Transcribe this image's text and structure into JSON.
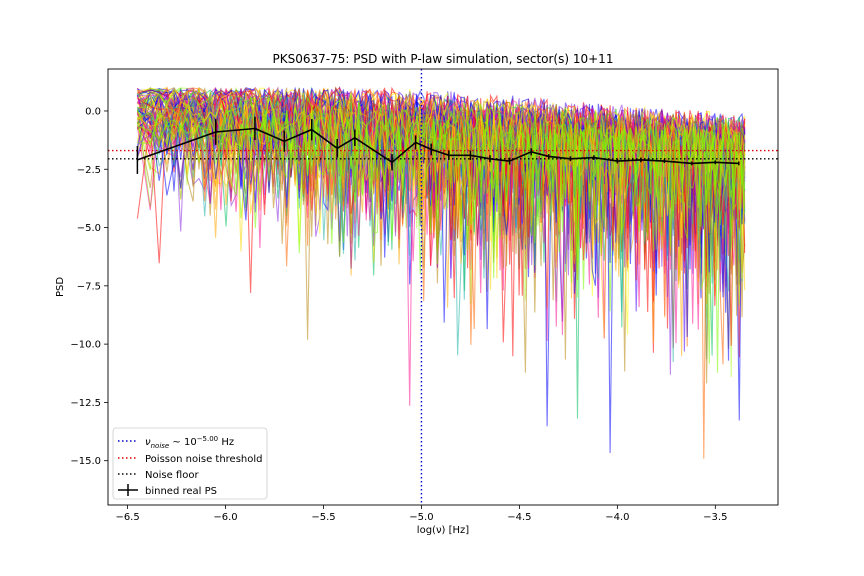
{
  "chart_data": {
    "type": "line",
    "title": "PKS0637-75: PSD with P-law simulation, sector(s) 10+11",
    "xlabel": "log(ν) [Hz]",
    "ylabel": "PSD",
    "xlim": [
      -6.6,
      -3.18
    ],
    "ylim": [
      -16.9,
      1.8
    ],
    "xticks": [
      -6.5,
      -6.0,
      -5.5,
      -5.0,
      -4.5,
      -4.0,
      -3.5
    ],
    "xtick_labels": [
      "−6.5",
      "−6.0",
      "−5.5",
      "−5.0",
      "−4.5",
      "−4.0",
      "−3.5"
    ],
    "yticks": [
      0.0,
      -2.5,
      -5.0,
      -7.5,
      -10.0,
      -12.5,
      -15.0
    ],
    "ytick_labels": [
      "0.0",
      "−2.5",
      "−5.0",
      "−7.5",
      "−10.0",
      "−12.5",
      "−15.0"
    ],
    "grid": false,
    "legend_position": "lower-left",
    "simulation": {
      "x_range": [
        -6.45,
        -3.35
      ],
      "n_traces": 90,
      "colors": [
        "#0000ff",
        "#4a00ff",
        "#8a2be2",
        "#ff0000",
        "#ff6600",
        "#ffa500",
        "#ffd700",
        "#ffff00",
        "#adff2f",
        "#7cfc00",
        "#00c060",
        "#20b2aa",
        "#ff1493",
        "#b8860b"
      ],
      "final_color": "#7cfc00",
      "opacity": 0.55
    },
    "binned_real_ps": {
      "name": "binned real PS",
      "color": "#000000",
      "points": [
        {
          "x": -6.45,
          "y": -2.1,
          "err": 0.6
        },
        {
          "x": -6.05,
          "y": -0.9,
          "err": 0.55
        },
        {
          "x": -5.85,
          "y": -0.75,
          "err": 0.5
        },
        {
          "x": -5.7,
          "y": -1.3,
          "err": 0.45
        },
        {
          "x": -5.56,
          "y": -0.8,
          "err": 0.45
        },
        {
          "x": -5.43,
          "y": -1.6,
          "err": 0.4
        },
        {
          "x": -5.34,
          "y": -1.15,
          "err": 0.35
        },
        {
          "x": -5.15,
          "y": -2.2,
          "err": 0.35
        },
        {
          "x": -5.03,
          "y": -1.35,
          "err": 0.3
        },
        {
          "x": -4.95,
          "y": -1.65,
          "err": 0.25
        },
        {
          "x": -4.86,
          "y": -1.9,
          "err": 0.2
        },
        {
          "x": -4.75,
          "y": -1.9,
          "err": 0.2
        },
        {
          "x": -4.65,
          "y": -2.05,
          "err": 0.15
        },
        {
          "x": -4.55,
          "y": -2.15,
          "err": 0.15
        },
        {
          "x": -4.44,
          "y": -1.75,
          "err": 0.15
        },
        {
          "x": -4.35,
          "y": -1.95,
          "err": 0.1
        },
        {
          "x": -4.24,
          "y": -2.05,
          "err": 0.1
        },
        {
          "x": -4.12,
          "y": -2.0,
          "err": 0.1
        },
        {
          "x": -4.0,
          "y": -2.15,
          "err": 0.1
        },
        {
          "x": -3.88,
          "y": -2.1,
          "err": 0.1
        },
        {
          "x": -3.76,
          "y": -2.15,
          "err": 0.08
        },
        {
          "x": -3.62,
          "y": -2.25,
          "err": 0.08
        },
        {
          "x": -3.5,
          "y": -2.2,
          "err": 0.08
        },
        {
          "x": -3.38,
          "y": -2.25,
          "err": 0.08
        }
      ]
    },
    "reference_lines": {
      "nu_noise_x": -5.0,
      "poisson_threshold_y": -1.7,
      "noise_floor_y": -2.05
    },
    "legend": {
      "nu_noise_main": "ν",
      "nu_noise_sub": "noise",
      "nu_noise_mid": " ~ 10",
      "nu_noise_sup": "−5.00",
      "nu_noise_unit": " Hz",
      "poisson": "Poisson noise threshold",
      "noise_floor": "Noise floor",
      "binned": "binned real PS"
    },
    "colors": {
      "nu_noise_line": "#0000cc",
      "poisson_line": "#dd0000",
      "noise_floor_line": "#000000"
    }
  }
}
